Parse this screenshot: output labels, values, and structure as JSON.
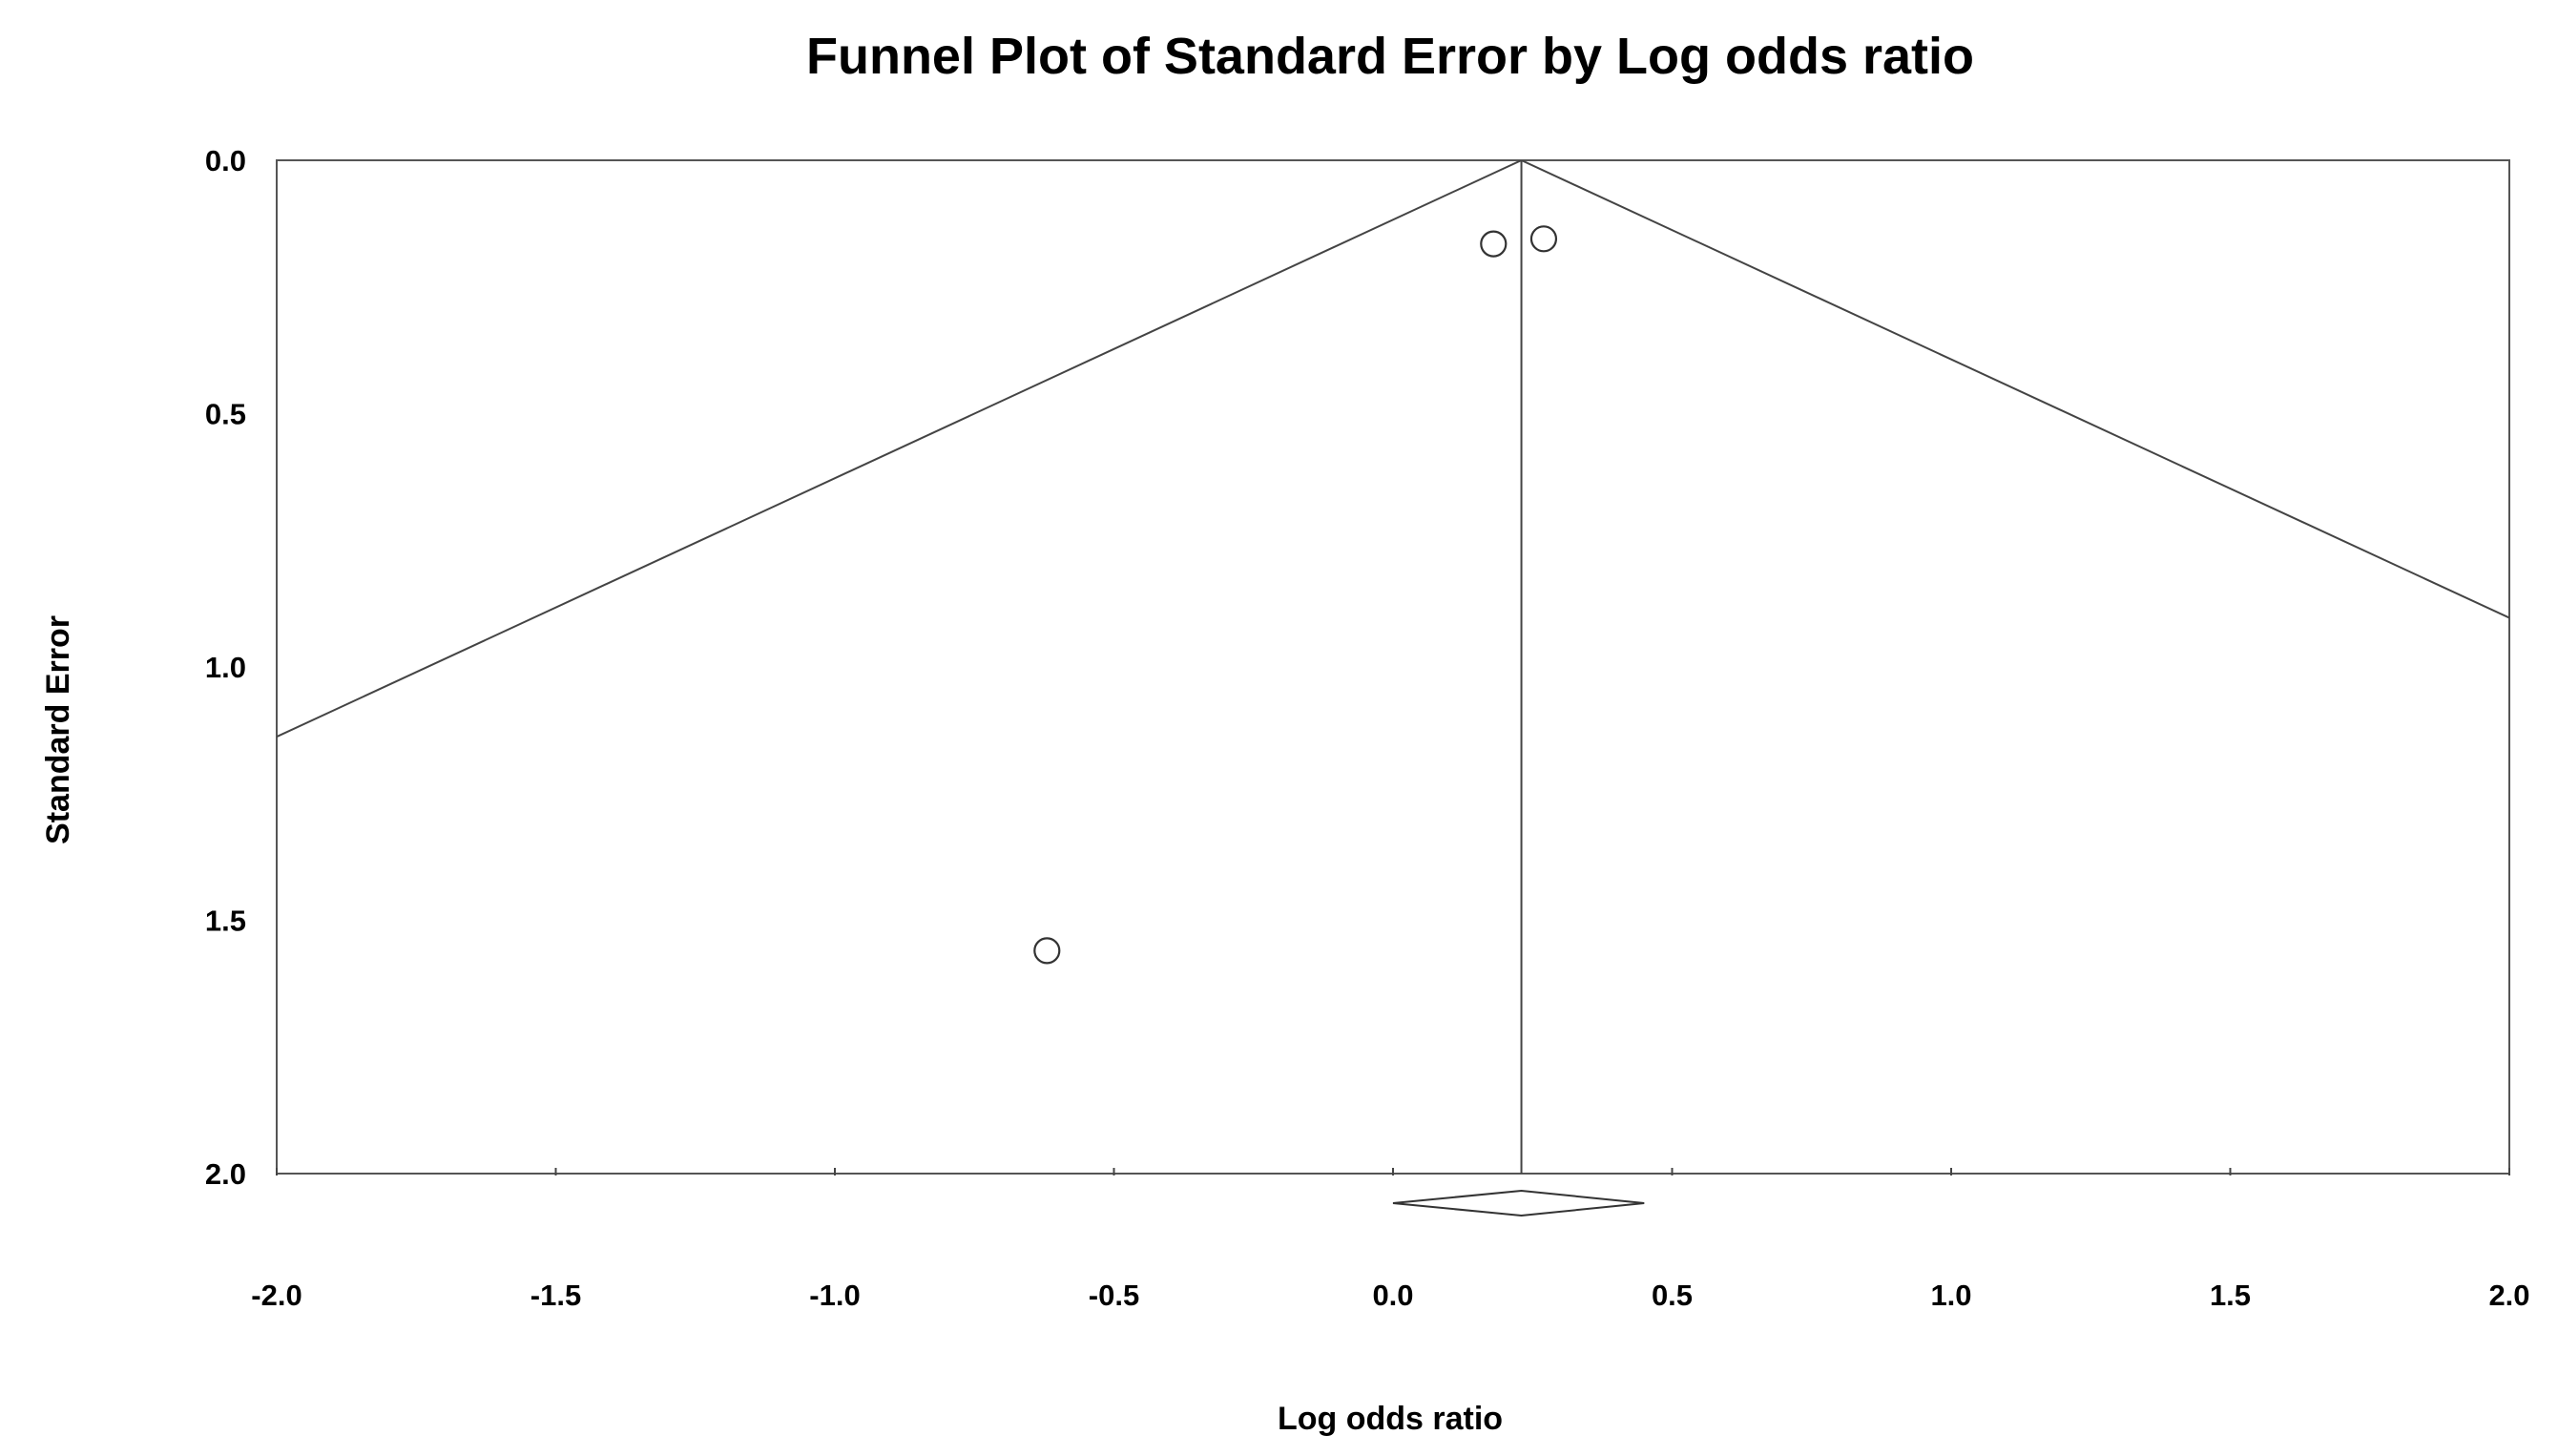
{
  "chart_data": {
    "type": "scatter",
    "title": "Funnel Plot of Standard Error by Log odds ratio",
    "xlabel": "Log odds ratio",
    "ylabel": "Standard Error",
    "xlim": [
      -2.0,
      2.0
    ],
    "ylim": [
      0.0,
      2.0
    ],
    "y_inverted": true,
    "x_ticks": [
      "-2.0",
      "-1.5",
      "-1.0",
      "-0.5",
      "0.0",
      "0.5",
      "1.0",
      "1.5",
      "2.0"
    ],
    "y_ticks": [
      "0.0",
      "0.5",
      "1.0",
      "1.5",
      "2.0"
    ],
    "grid": false,
    "pooled_estimate": 0.23,
    "pooled_ci": [
      0.0,
      0.45
    ],
    "points": [
      {
        "x": 0.18,
        "y": 0.165
      },
      {
        "x": 0.27,
        "y": 0.155
      },
      {
        "x": -0.62,
        "y": 1.56
      }
    ],
    "funnel_z": 1.96
  }
}
